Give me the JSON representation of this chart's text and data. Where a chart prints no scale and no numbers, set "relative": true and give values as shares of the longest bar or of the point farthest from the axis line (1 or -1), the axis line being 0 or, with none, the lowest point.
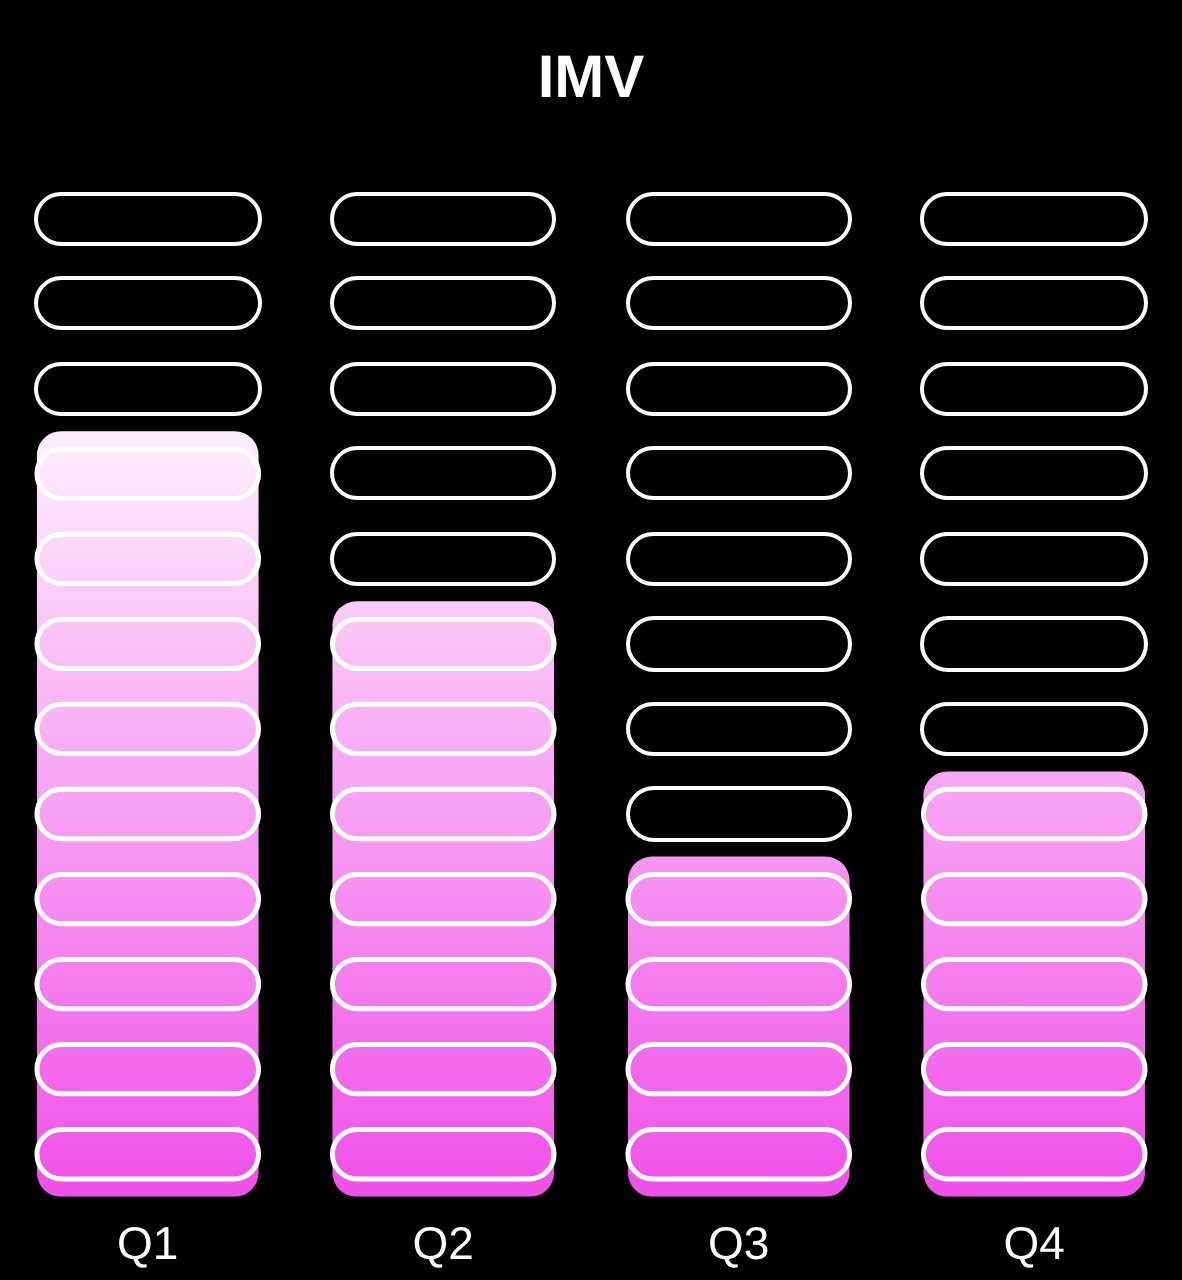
{
  "chart_data": {
    "type": "bar",
    "title": "IMV",
    "relative": true,
    "categories": [
      "Q1",
      "Q2",
      "Q3",
      "Q4"
    ],
    "values": [
      1,
      0.7778,
      0.4444,
      0.5556
    ],
    "color": "#f050e8",
    "legend": false
  }
}
